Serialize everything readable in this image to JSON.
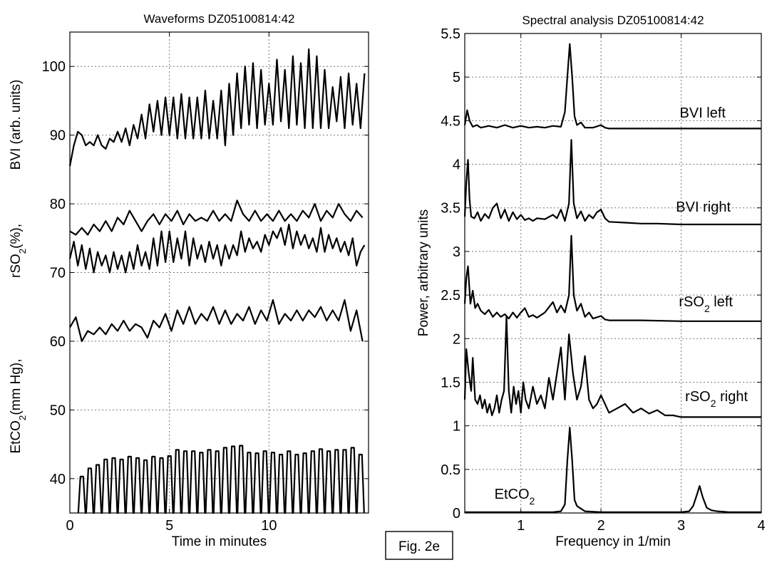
{
  "figure_label": "Fig. 2e",
  "chart_data": [
    {
      "type": "line",
      "title": "Waveforms DZ05100814:42",
      "xlabel": "Time in minutes",
      "ylabel_segments": {
        "bvi": "BVI (arb. units)",
        "rso2": "rSO2(%),",
        "etco2": "EtCO2(mm Hg),"
      },
      "xlim": [
        0,
        15
      ],
      "ylim": [
        35,
        105
      ],
      "xticks": [
        0,
        5,
        10
      ],
      "yticks": [
        40,
        50,
        60,
        70,
        80,
        90,
        100
      ],
      "grid": true,
      "series": [
        {
          "x": [
            0,
            0.2,
            0.4,
            0.6,
            0.8,
            1.0,
            1.2,
            1.4,
            1.6,
            1.8,
            2.0,
            2.2,
            2.4,
            2.6,
            2.8,
            3.0,
            3.2,
            3.4,
            3.6,
            3.8,
            4.0,
            4.2,
            4.4,
            4.6,
            4.8,
            5.0,
            5.2,
            5.4,
            5.6,
            5.8,
            6.0,
            6.2,
            6.4,
            6.6,
            6.8,
            7.0,
            7.2,
            7.4,
            7.6,
            7.8,
            8.0,
            8.2,
            8.4,
            8.6,
            8.8,
            9.0,
            9.2,
            9.4,
            9.6,
            9.8,
            10.0,
            10.2,
            10.4,
            10.6,
            10.8,
            11.0,
            11.2,
            11.4,
            11.6,
            11.8,
            12.0,
            12.2,
            12.4,
            12.6,
            12.8,
            13.0,
            13.2,
            13.4,
            13.6,
            13.8,
            14.0,
            14.2,
            14.4,
            14.6,
            14.8
          ],
          "values": [
            85.5,
            88.5,
            90.5,
            90.0,
            88.5,
            89.0,
            88.5,
            90.0,
            88.5,
            88.0,
            89.5,
            89.0,
            90.5,
            89.0,
            91.0,
            88.5,
            91.5,
            89.5,
            93.0,
            89.5,
            94.5,
            90.5,
            95.0,
            90.0,
            95.5,
            90.0,
            95.5,
            89.5,
            96.0,
            89.5,
            95.5,
            89.5,
            95.5,
            89.5,
            96.5,
            89.5,
            95.0,
            89.5,
            96.5,
            88.5,
            97.5,
            90.0,
            99.0,
            91.0,
            100.0,
            91.5,
            100.5,
            91.0,
            99.5,
            91.5,
            97.5,
            91.5,
            101.0,
            92.0,
            99.5,
            91.0,
            101.5,
            91.5,
            100.5,
            91.0,
            102.5,
            91.0,
            101.5,
            91.0,
            99.5,
            91.0,
            97.0,
            92.0,
            98.5,
            91.0,
            99.0,
            91.5,
            97.5,
            91.0,
            99.0
          ]
        },
        {
          "x": [
            0,
            0.3,
            0.6,
            0.9,
            1.2,
            1.5,
            1.8,
            2.1,
            2.4,
            2.7,
            3.0,
            3.3,
            3.6,
            3.9,
            4.2,
            4.5,
            4.8,
            5.1,
            5.4,
            5.7,
            6.0,
            6.3,
            6.6,
            6.9,
            7.2,
            7.5,
            7.8,
            8.1,
            8.4,
            8.7,
            9.0,
            9.3,
            9.6,
            9.9,
            10.2,
            10.5,
            10.8,
            11.1,
            11.4,
            11.7,
            12.0,
            12.3,
            12.6,
            12.9,
            13.2,
            13.5,
            13.8,
            14.1,
            14.4,
            14.7
          ],
          "values": [
            76,
            75.5,
            76.5,
            75.5,
            77,
            76,
            77.5,
            76,
            78,
            77,
            79,
            77.5,
            76,
            77.5,
            78.5,
            77,
            78.5,
            77.5,
            79,
            77,
            78.5,
            77.5,
            78,
            77.5,
            79,
            77.5,
            78.5,
            77.5,
            80.5,
            78.5,
            77.5,
            79,
            77.5,
            78.5,
            77.5,
            79,
            77.5,
            78.5,
            77.5,
            79,
            78,
            80,
            77.5,
            79,
            78,
            80,
            78.5,
            77.5,
            79,
            78
          ]
        },
        {
          "x": [
            0,
            0.2,
            0.4,
            0.6,
            0.8,
            1.0,
            1.2,
            1.4,
            1.6,
            1.8,
            2.0,
            2.2,
            2.4,
            2.6,
            2.8,
            3.0,
            3.2,
            3.4,
            3.6,
            3.8,
            4.0,
            4.2,
            4.4,
            4.6,
            4.8,
            5.0,
            5.2,
            5.4,
            5.6,
            5.8,
            6.0,
            6.2,
            6.4,
            6.6,
            6.8,
            7.0,
            7.2,
            7.4,
            7.6,
            7.8,
            8.0,
            8.2,
            8.4,
            8.6,
            8.8,
            9.0,
            9.2,
            9.4,
            9.6,
            9.8,
            10.0,
            10.2,
            10.4,
            10.6,
            10.8,
            11.0,
            11.2,
            11.4,
            11.6,
            11.8,
            12.0,
            12.2,
            12.4,
            12.6,
            12.8,
            13.0,
            13.2,
            13.4,
            13.6,
            13.8,
            14.0,
            14.2,
            14.4,
            14.6,
            14.8
          ],
          "values": [
            72,
            74.5,
            71,
            74,
            70.5,
            73.5,
            70,
            73,
            71,
            72.5,
            70,
            73,
            70.5,
            72.5,
            70,
            73,
            70.5,
            74,
            71,
            73,
            70.5,
            75,
            71,
            76,
            71.5,
            76,
            71.5,
            75,
            72,
            76,
            71,
            75,
            72,
            74,
            71.5,
            74.5,
            72,
            74,
            71,
            74,
            72,
            74,
            72.5,
            76,
            73,
            75,
            73.5,
            74.5,
            73,
            75.5,
            74,
            76,
            75,
            76.5,
            74,
            77,
            73.5,
            76,
            74,
            75.5,
            73.5,
            75,
            73,
            76.5,
            73,
            75.5,
            73.5,
            75,
            73,
            74.5,
            72.5,
            75,
            71,
            73,
            74
          ]
        },
        {
          "x": [
            0,
            0.3,
            0.6,
            0.9,
            1.2,
            1.5,
            1.8,
            2.1,
            2.4,
            2.7,
            3.0,
            3.3,
            3.6,
            3.9,
            4.2,
            4.5,
            4.8,
            5.1,
            5.4,
            5.7,
            6.0,
            6.3,
            6.6,
            6.9,
            7.2,
            7.5,
            7.8,
            8.1,
            8.4,
            8.7,
            9.0,
            9.3,
            9.6,
            9.9,
            10.2,
            10.5,
            10.8,
            11.1,
            11.4,
            11.7,
            12.0,
            12.3,
            12.6,
            12.9,
            13.2,
            13.5,
            13.8,
            14.1,
            14.4,
            14.7
          ],
          "values": [
            62,
            63.5,
            60,
            61.5,
            61,
            62,
            61,
            62.5,
            61.5,
            63,
            61.5,
            62.5,
            62,
            60.5,
            63,
            62,
            64,
            61.5,
            64.5,
            62.5,
            65,
            62.5,
            64,
            63,
            65,
            62.5,
            64.5,
            62.5,
            64,
            63,
            65,
            62.5,
            64.5,
            63,
            66,
            62.5,
            64,
            63,
            64.5,
            63,
            64.5,
            63.5,
            65,
            63,
            64.5,
            63,
            66,
            61.5,
            64.5,
            60
          ]
        },
        {
          "x": [
            0.6,
            1.0,
            1.4,
            1.8,
            2.2,
            2.6,
            3.0,
            3.4,
            3.8,
            4.2,
            4.6,
            5.0,
            5.4,
            5.8,
            6.2,
            6.6,
            7.0,
            7.4,
            7.8,
            8.2,
            8.6,
            9.0,
            9.4,
            9.8,
            10.2,
            10.6,
            11.0,
            11.4,
            11.8,
            12.2,
            12.6,
            13.0,
            13.4,
            13.8,
            14.2,
            14.6
          ],
          "values": [
            40.3,
            41.5,
            42,
            42.8,
            43,
            42.8,
            43.2,
            43,
            42.7,
            43.2,
            43,
            43.3,
            44.2,
            44,
            44,
            43.8,
            44.2,
            44,
            44.5,
            44.7,
            44.8,
            43.8,
            43.7,
            44,
            43.8,
            43.5,
            44,
            43.5,
            43.7,
            44,
            44.3,
            44,
            44.2,
            44.2,
            44.5,
            43.5
          ]
        }
      ]
    },
    {
      "type": "line",
      "title": "Spectral analysis DZ05100814:42",
      "xlabel": "Frequency in 1/min",
      "ylabel": "Power, arbitrary units",
      "xlim": [
        0.3,
        4
      ],
      "ylim": [
        0,
        5.5
      ],
      "xticks": [
        1,
        2,
        3,
        4
      ],
      "yticks": [
        0,
        0.5,
        1,
        1.5,
        2,
        2.5,
        3,
        3.5,
        4,
        4.5,
        5,
        5.5
      ],
      "grid": true,
      "series": [
        {
          "name": "BVI left",
          "x": [
            0.3,
            0.33,
            0.36,
            0.4,
            0.45,
            0.5,
            0.6,
            0.7,
            0.8,
            0.9,
            1.0,
            1.1,
            1.2,
            1.3,
            1.4,
            1.5,
            1.55,
            1.58,
            1.61,
            1.64,
            1.67,
            1.7,
            1.75,
            1.8,
            1.9,
            2.0,
            2.05,
            2.1,
            2.3,
            2.5,
            3.0,
            4.0
          ],
          "values": [
            4.45,
            4.62,
            4.5,
            4.43,
            4.45,
            4.42,
            4.44,
            4.42,
            4.45,
            4.42,
            4.44,
            4.42,
            4.43,
            4.42,
            4.44,
            4.43,
            4.6,
            5.0,
            5.38,
            5.0,
            4.55,
            4.45,
            4.48,
            4.42,
            4.42,
            4.45,
            4.42,
            4.41,
            4.41,
            4.41,
            4.41,
            4.41
          ]
        },
        {
          "name": "BVI right",
          "x": [
            0.3,
            0.32,
            0.34,
            0.36,
            0.38,
            0.42,
            0.46,
            0.5,
            0.55,
            0.6,
            0.65,
            0.7,
            0.75,
            0.8,
            0.85,
            0.9,
            0.95,
            1.0,
            1.05,
            1.1,
            1.15,
            1.2,
            1.3,
            1.4,
            1.45,
            1.5,
            1.55,
            1.6,
            1.63,
            1.66,
            1.7,
            1.75,
            1.8,
            1.85,
            1.9,
            1.95,
            2.0,
            2.05,
            2.1,
            2.3,
            2.5,
            2.7,
            3.0,
            4.0
          ],
          "values": [
            3.4,
            3.8,
            4.05,
            3.6,
            3.4,
            3.38,
            3.45,
            3.35,
            3.43,
            3.38,
            3.5,
            3.55,
            3.38,
            3.48,
            3.35,
            3.45,
            3.37,
            3.42,
            3.36,
            3.38,
            3.35,
            3.38,
            3.37,
            3.42,
            3.38,
            3.48,
            3.35,
            3.55,
            4.28,
            3.55,
            3.38,
            3.46,
            3.35,
            3.42,
            3.38,
            3.45,
            3.48,
            3.38,
            3.34,
            3.33,
            3.32,
            3.32,
            3.31,
            3.31
          ]
        },
        {
          "name": "rSO2 left",
          "x": [
            0.3,
            0.32,
            0.34,
            0.37,
            0.4,
            0.43,
            0.46,
            0.5,
            0.55,
            0.6,
            0.65,
            0.7,
            0.75,
            0.8,
            0.85,
            0.9,
            0.95,
            1.0,
            1.05,
            1.1,
            1.15,
            1.2,
            1.3,
            1.4,
            1.45,
            1.5,
            1.55,
            1.6,
            1.63,
            1.66,
            1.7,
            1.75,
            1.8,
            1.85,
            1.9,
            2.0,
            2.05,
            2.1,
            2.3,
            2.5,
            3.0,
            4.0
          ],
          "values": [
            2.4,
            2.7,
            2.83,
            2.4,
            2.55,
            2.35,
            2.4,
            2.32,
            2.28,
            2.33,
            2.25,
            2.3,
            2.25,
            2.28,
            2.23,
            2.3,
            2.24,
            2.3,
            2.35,
            2.25,
            2.27,
            2.24,
            2.3,
            2.42,
            2.3,
            2.38,
            2.3,
            2.5,
            3.18,
            2.5,
            2.32,
            2.4,
            2.25,
            2.3,
            2.23,
            2.26,
            2.22,
            2.21,
            2.21,
            2.21,
            2.2,
            2.2
          ]
        },
        {
          "name": "rSO2 right",
          "x": [
            0.3,
            0.32,
            0.35,
            0.38,
            0.4,
            0.43,
            0.46,
            0.49,
            0.52,
            0.55,
            0.58,
            0.61,
            0.64,
            0.67,
            0.7,
            0.73,
            0.76,
            0.79,
            0.82,
            0.85,
            0.88,
            0.91,
            0.94,
            0.97,
            1.0,
            1.03,
            1.06,
            1.1,
            1.15,
            1.2,
            1.25,
            1.3,
            1.35,
            1.4,
            1.45,
            1.5,
            1.55,
            1.6,
            1.65,
            1.7,
            1.75,
            1.8,
            1.85,
            1.9,
            1.95,
            2.0,
            2.1,
            2.2,
            2.3,
            2.4,
            2.5,
            2.6,
            2.7,
            2.8,
            2.9,
            3.0,
            3.5,
            4.0
          ],
          "values": [
            1.3,
            1.88,
            1.6,
            1.4,
            1.78,
            1.3,
            1.25,
            1.35,
            1.2,
            1.3,
            1.15,
            1.25,
            1.12,
            1.2,
            1.35,
            1.15,
            1.3,
            1.4,
            2.25,
            1.4,
            1.15,
            1.45,
            1.25,
            1.4,
            1.15,
            1.5,
            1.3,
            1.2,
            1.45,
            1.25,
            1.35,
            1.2,
            1.55,
            1.3,
            1.6,
            1.9,
            1.3,
            2.05,
            1.6,
            1.3,
            1.45,
            1.8,
            1.3,
            1.2,
            1.25,
            1.35,
            1.15,
            1.2,
            1.25,
            1.15,
            1.2,
            1.14,
            1.18,
            1.12,
            1.12,
            1.1,
            1.1,
            1.1
          ]
        },
        {
          "name": "EtCO2",
          "x": [
            0.3,
            0.5,
            0.8,
            1.0,
            1.2,
            1.4,
            1.5,
            1.55,
            1.58,
            1.61,
            1.64,
            1.67,
            1.7,
            1.75,
            1.8,
            2.0,
            2.5,
            3.0,
            3.1,
            3.15,
            3.2,
            3.23,
            3.27,
            3.32,
            3.38,
            3.45,
            3.6,
            4.0
          ],
          "values": [
            0.01,
            0.01,
            0.01,
            0.01,
            0.01,
            0.01,
            0.02,
            0.1,
            0.6,
            0.98,
            0.6,
            0.15,
            0.08,
            0.05,
            0.02,
            0.01,
            0.01,
            0.01,
            0.02,
            0.08,
            0.22,
            0.31,
            0.18,
            0.06,
            0.03,
            0.02,
            0.01,
            0.01
          ]
        }
      ]
    }
  ]
}
